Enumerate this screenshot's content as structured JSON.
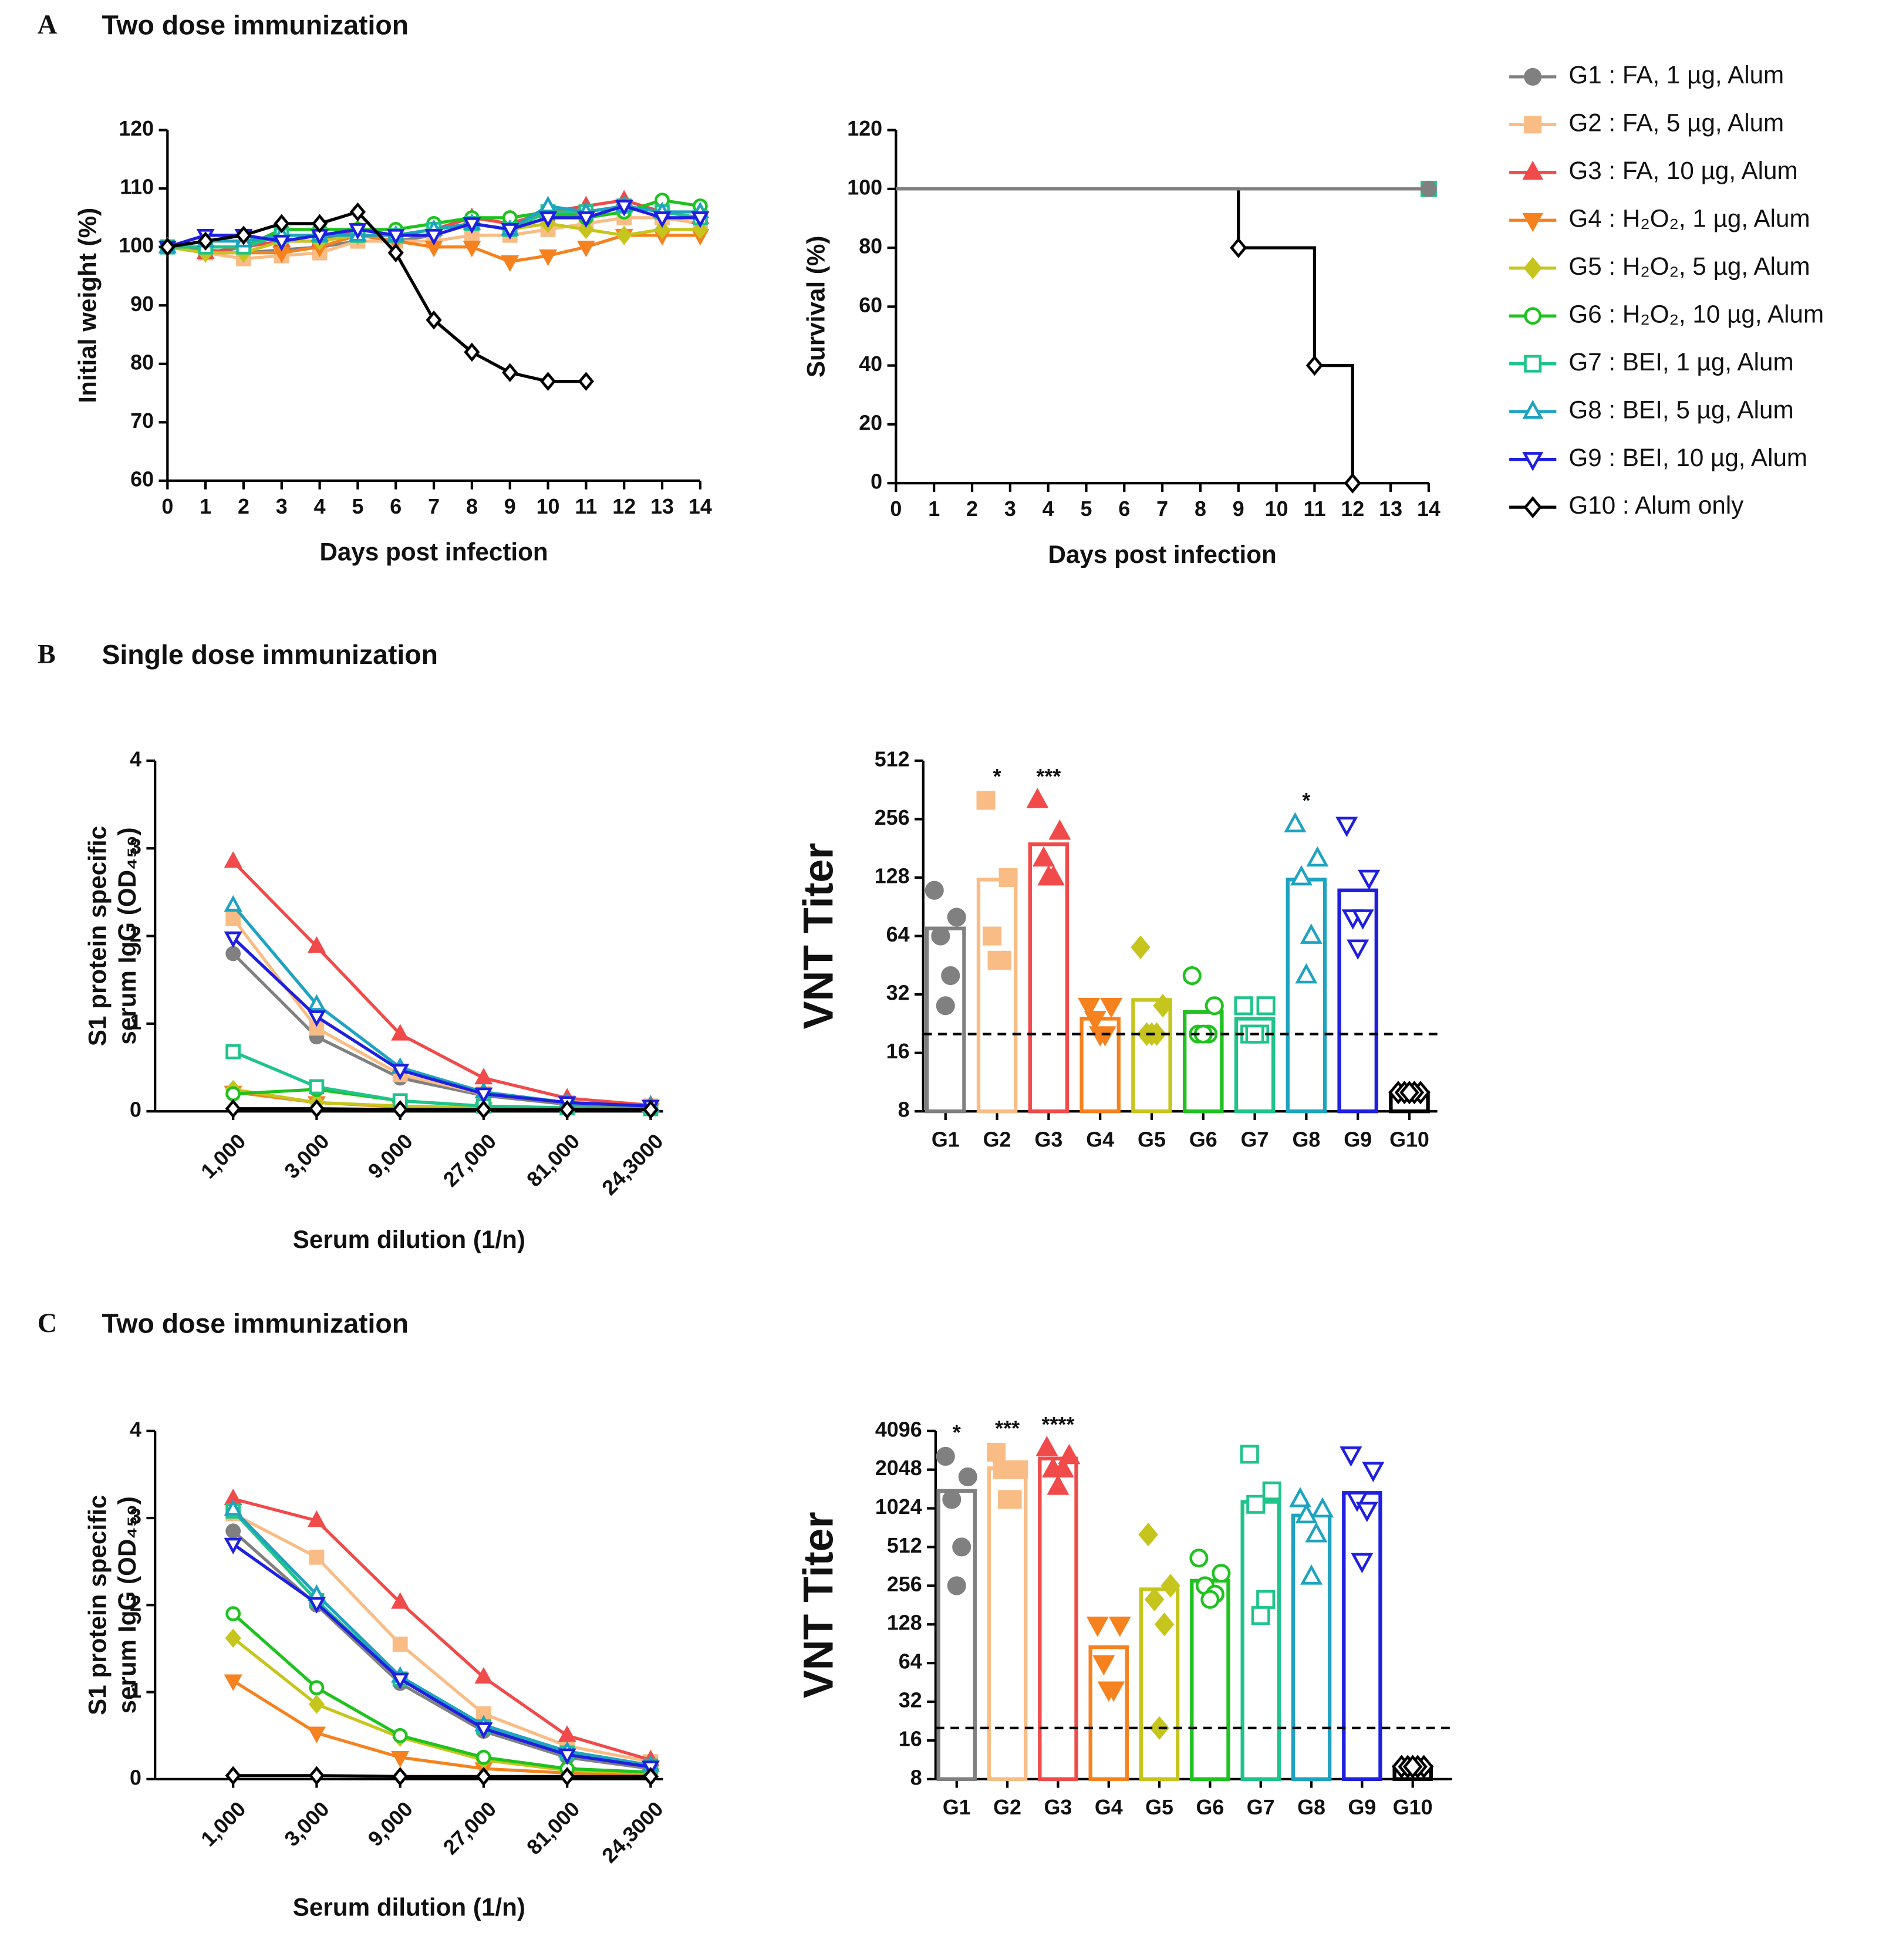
{
  "panels": [
    {
      "label": "A",
      "title": "Two dose immunization"
    },
    {
      "label": "B",
      "title": "Single dose immunization"
    },
    {
      "label": "C",
      "title": "Two dose immunization"
    }
  ],
  "chart_data": [
    {
      "type": "line",
      "x_label": "Days post infection",
      "y_label": [
        "Initial weight (%)"
      ],
      "x": [
        0,
        1,
        2,
        3,
        4,
        5,
        6,
        7,
        8,
        9,
        10,
        11,
        12,
        13,
        14
      ],
      "xlim": [
        0,
        14
      ],
      "xticks": [
        0,
        1,
        2,
        3,
        4,
        5,
        6,
        7,
        8,
        9,
        10,
        11,
        12,
        13,
        14
      ],
      "ylim": [
        60,
        120
      ],
      "yticks": [
        60,
        70,
        80,
        90,
        100,
        110,
        120
      ],
      "series": [
        {
          "name": "G1 : FA, 1 µg, Alum",
          "color": "#808080",
          "marker": "circle",
          "filled": true,
          "values": [
            100,
            99.5,
            99,
            99.5,
            100,
            101,
            101,
            102,
            104,
            103,
            105,
            106,
            107,
            106,
            105
          ]
        },
        {
          "name": "G2 : FA, 5 µg, Alum",
          "color": "#f9bc85",
          "marker": "square",
          "filled": true,
          "values": [
            100,
            99,
            98,
            98.5,
            99,
            101,
            101,
            101,
            102,
            102,
            103,
            104,
            105,
            105,
            104
          ]
        },
        {
          "name": "G3 : FA, 10 µg, Alum",
          "color": "#f04a4a",
          "marker": "triangle",
          "filled": true,
          "values": [
            100,
            99,
            100,
            101,
            101,
            103,
            102,
            103,
            105,
            104,
            106,
            107,
            108,
            106,
            105
          ]
        },
        {
          "name": "G4 : H₂O₂, 1 µg, Alum",
          "color": "#f5821f",
          "marker": "triangle-down",
          "filled": true,
          "values": [
            100,
            99,
            99,
            99,
            100,
            102,
            101,
            100,
            100,
            97.5,
            98.5,
            100,
            102,
            102,
            102
          ]
        },
        {
          "name": "G5 : H₂O₂, 5 µg, Alum",
          "color": "#c5c51d",
          "marker": "diamond",
          "filled": true,
          "values": [
            100,
            99,
            99,
            101,
            101,
            102,
            102,
            103,
            104,
            103,
            104,
            103,
            102,
            103,
            103
          ]
        },
        {
          "name": "G6 : H₂O₂, 10 µg, Alum",
          "color": "#1fc21f",
          "marker": "circle",
          "filled": false,
          "values": [
            100,
            100,
            100,
            103,
            103,
            103,
            103,
            104,
            105,
            105,
            106,
            105,
            106,
            108,
            107
          ]
        },
        {
          "name": "G7 : BEI, 1 µg, Alum",
          "color": "#1fc48a",
          "marker": "square",
          "filled": false,
          "values": [
            100,
            100,
            100,
            102,
            102,
            102,
            102,
            103,
            104,
            103,
            106,
            106,
            107,
            106,
            105
          ]
        },
        {
          "name": "G8 : BEI, 5 µg, Alum",
          "color": "#1ea3c0",
          "marker": "triangle",
          "filled": false,
          "values": [
            100,
            101,
            101,
            102,
            102,
            102,
            102,
            103,
            104,
            103,
            107,
            106,
            107,
            106,
            106
          ]
        },
        {
          "name": "G9 : BEI, 10 µg, Alum",
          "color": "#1f1fe0",
          "marker": "triangle-down",
          "filled": false,
          "values": [
            100,
            102,
            102,
            101,
            102,
            103,
            102,
            102,
            104,
            103,
            105,
            105,
            107,
            105,
            105
          ]
        },
        {
          "name": "G10 : Alum only",
          "color": "#000000",
          "marker": "diamond",
          "filled": false,
          "values": [
            100,
            101,
            102,
            104,
            104,
            106,
            99,
            87.5,
            82,
            78.5,
            77,
            77,
            null,
            null,
            null
          ]
        }
      ]
    },
    {
      "type": "step",
      "x_label": "Days post infection",
      "y_label": [
        "Survival (%)"
      ],
      "xlim": [
        0,
        14
      ],
      "xticks": [
        0,
        1,
        2,
        3,
        4,
        5,
        6,
        7,
        8,
        9,
        10,
        11,
        12,
        13,
        14
      ],
      "ylim": [
        0,
        120
      ],
      "yticks": [
        0,
        20,
        40,
        60,
        80,
        100,
        120
      ],
      "series": [
        {
          "color": "#808080",
          "marker": "circle",
          "filled": true,
          "x": [
            0,
            14
          ],
          "values": [
            100,
            100
          ]
        },
        {
          "color": "#000000",
          "marker": "diamond",
          "filled": false,
          "x": [
            0,
            9,
            11,
            12
          ],
          "values": [
            100,
            80,
            40,
            0
          ]
        },
        {
          "color": "#1fc48a",
          "marker": "square",
          "filled": false,
          "x": [
            0,
            14
          ],
          "values": [
            100,
            100
          ]
        },
        {
          "color": "#808080",
          "marker": "circle",
          "filled": true,
          "x": [
            0,
            14
          ],
          "values": [
            100,
            100
          ]
        }
      ]
    },
    {
      "type": "line",
      "x_label": "Serum dilution (1/n)",
      "y_label": [
        "S1 protein specific",
        "serum IgG (OD₄₅₀)"
      ],
      "categories": [
        "1,000",
        "3,000",
        "9,000",
        "27,000",
        "81,000",
        "24,3000"
      ],
      "ylim": [
        0,
        4
      ],
      "yticks": [
        0,
        1,
        2,
        3,
        4
      ],
      "series": [
        {
          "color": "#808080",
          "marker": "circle",
          "filled": true,
          "values": [
            1.8,
            0.85,
            0.38,
            0.18,
            0.08,
            0.05
          ]
        },
        {
          "color": "#f9bc85",
          "marker": "square",
          "filled": true,
          "values": [
            2.2,
            0.95,
            0.42,
            0.2,
            0.1,
            0.06
          ]
        },
        {
          "color": "#f04a4a",
          "marker": "triangle",
          "filled": true,
          "values": [
            2.85,
            1.88,
            0.88,
            0.38,
            0.15,
            0.07
          ]
        },
        {
          "color": "#f5821f",
          "marker": "triangle-down",
          "filled": true,
          "values": [
            0.22,
            0.1,
            0.05,
            0.03,
            0.02,
            0.02
          ]
        },
        {
          "color": "#c5c51d",
          "marker": "diamond",
          "filled": true,
          "values": [
            0.25,
            0.1,
            0.06,
            0.04,
            0.03,
            0.02
          ]
        },
        {
          "color": "#1fc21f",
          "marker": "circle",
          "filled": false,
          "values": [
            0.2,
            0.25,
            0.12,
            0.06,
            0.04,
            0.03
          ]
        },
        {
          "color": "#1fc48a",
          "marker": "square",
          "filled": false,
          "values": [
            0.68,
            0.28,
            0.12,
            0.06,
            0.04,
            0.03
          ]
        },
        {
          "color": "#1ea3c0",
          "marker": "triangle",
          "filled": false,
          "values": [
            2.35,
            1.22,
            0.5,
            0.22,
            0.1,
            0.06
          ]
        },
        {
          "color": "#1f1fe0",
          "marker": "triangle-down",
          "filled": false,
          "values": [
            1.98,
            1.08,
            0.47,
            0.2,
            0.1,
            0.06
          ]
        },
        {
          "color": "#000000",
          "marker": "diamond",
          "filled": false,
          "values": [
            0.03,
            0.03,
            0.02,
            0.02,
            0.02,
            0.02
          ]
        }
      ]
    },
    {
      "type": "bar",
      "y_label": [
        "VNT Titer"
      ],
      "log_scale": true,
      "ylim": [
        8,
        512
      ],
      "yticks": [
        8,
        16,
        32,
        64,
        128,
        256,
        512
      ],
      "reference_line": 20,
      "categories": [
        "G1",
        "G2",
        "G3",
        "G4",
        "G5",
        "G6",
        "G7",
        "G8",
        "G9",
        "G10"
      ],
      "colors": [
        "#808080",
        "#f9bc85",
        "#f04a4a",
        "#f5821f",
        "#c5c51d",
        "#1fc21f",
        "#1fc48a",
        "#1ea3c0",
        "#1f1fe0",
        "#000000"
      ],
      "markers": [
        "circle",
        "square",
        "triangle",
        "triangle-down",
        "diamond",
        "circle",
        "square",
        "triangle",
        "triangle-down",
        "diamond"
      ],
      "filled": [
        true,
        true,
        true,
        true,
        true,
        false,
        false,
        false,
        false,
        false
      ],
      "values": [
        70,
        125,
        190,
        24,
        30,
        26,
        24,
        125,
        110,
        10
      ],
      "points": [
        [
          110,
          80,
          64,
          40,
          28
        ],
        [
          320,
          128,
          64,
          48,
          48
        ],
        [
          320,
          220,
          160,
          128,
          128
        ],
        [
          28,
          28,
          24,
          20,
          20
        ],
        [
          56,
          28,
          20,
          20,
          20
        ],
        [
          40,
          28,
          20,
          20,
          20
        ],
        [
          28,
          28,
          20,
          20,
          20
        ],
        [
          240,
          160,
          128,
          64,
          40
        ],
        [
          240,
          128,
          80,
          80,
          56
        ],
        [
          10,
          10,
          10,
          10,
          10
        ]
      ],
      "significance": [
        null,
        "*",
        "***",
        null,
        null,
        null,
        null,
        "*",
        null,
        null
      ]
    },
    {
      "type": "line",
      "x_label": "Serum dilution (1/n)",
      "y_label": [
        "S1 protein specific",
        "serum IgG (OD₄₅₀)"
      ],
      "categories": [
        "1,000",
        "3,000",
        "9,000",
        "27,000",
        "81,000",
        "24,3000"
      ],
      "ylim": [
        0,
        4
      ],
      "yticks": [
        0,
        1,
        2,
        3,
        4
      ],
      "series": [
        {
          "color": "#808080",
          "marker": "circle",
          "filled": true,
          "values": [
            2.85,
            2.0,
            1.1,
            0.55,
            0.25,
            0.12
          ]
        },
        {
          "color": "#f9bc85",
          "marker": "square",
          "filled": true,
          "values": [
            3.05,
            2.55,
            1.55,
            0.75,
            0.38,
            0.2
          ]
        },
        {
          "color": "#f04a4a",
          "marker": "triangle",
          "filled": true,
          "values": [
            3.22,
            2.97,
            2.03,
            1.17,
            0.5,
            0.22
          ]
        },
        {
          "color": "#f5821f",
          "marker": "triangle-down",
          "filled": true,
          "values": [
            1.13,
            0.53,
            0.25,
            0.12,
            0.07,
            0.05
          ]
        },
        {
          "color": "#c5c51d",
          "marker": "diamond",
          "filled": true,
          "values": [
            1.62,
            0.86,
            0.48,
            0.22,
            0.1,
            0.07
          ]
        },
        {
          "color": "#1fc21f",
          "marker": "circle",
          "filled": false,
          "values": [
            1.9,
            1.05,
            0.5,
            0.25,
            0.12,
            0.08
          ]
        },
        {
          "color": "#1fc48a",
          "marker": "square",
          "filled": false,
          "values": [
            3.08,
            2.05,
            1.15,
            0.6,
            0.3,
            0.15
          ]
        },
        {
          "color": "#1ea3c0",
          "marker": "triangle",
          "filled": false,
          "values": [
            3.1,
            2.12,
            1.18,
            0.62,
            0.32,
            0.16
          ]
        },
        {
          "color": "#1f1fe0",
          "marker": "triangle-down",
          "filled": false,
          "values": [
            2.7,
            2.02,
            1.15,
            0.58,
            0.28,
            0.14
          ]
        },
        {
          "color": "#000000",
          "marker": "diamond",
          "filled": false,
          "values": [
            0.04,
            0.04,
            0.03,
            0.03,
            0.03,
            0.03
          ]
        }
      ]
    },
    {
      "type": "bar",
      "y_label": [
        "VNT Titer"
      ],
      "log_scale": true,
      "ylim": [
        8,
        4096
      ],
      "yticks": [
        8,
        16,
        32,
        64,
        128,
        256,
        512,
        1024,
        2048,
        4096
      ],
      "reference_line": 20,
      "categories": [
        "G1",
        "G2",
        "G3",
        "G4",
        "G5",
        "G6",
        "G7",
        "G8",
        "G9",
        "G10"
      ],
      "colors": [
        "#808080",
        "#f9bc85",
        "#f04a4a",
        "#f5821f",
        "#c5c51d",
        "#1fc21f",
        "#1fc48a",
        "#1ea3c0",
        "#1f1fe0",
        "#000000"
      ],
      "markers": [
        "circle",
        "square",
        "triangle",
        "triangle-down",
        "diamond",
        "circle",
        "square",
        "triangle",
        "triangle-down",
        "diamond"
      ],
      "filled": [
        true,
        true,
        true,
        true,
        true,
        false,
        false,
        false,
        false,
        false
      ],
      "values": [
        1400,
        2100,
        2500,
        85,
        240,
        280,
        1150,
        900,
        1350,
        10
      ],
      "points": [
        [
          2600,
          1800,
          1200,
          512,
          256
        ],
        [
          2800,
          2048,
          2048,
          1200,
          1200
        ],
        [
          3000,
          2600,
          2048,
          2048,
          1500
        ],
        [
          128,
          128,
          64,
          40,
          40
        ],
        [
          640,
          256,
          200,
          128,
          20
        ],
        [
          420,
          320,
          256,
          220,
          200
        ],
        [
          2700,
          1400,
          1100,
          200,
          150
        ],
        [
          1200,
          1000,
          900,
          640,
          300
        ],
        [
          2700,
          2048,
          1200,
          1000,
          400
        ],
        [
          10,
          10,
          10,
          10,
          10
        ]
      ],
      "significance": [
        "*",
        "***",
        "****",
        null,
        null,
        null,
        null,
        null,
        null,
        null
      ]
    }
  ]
}
